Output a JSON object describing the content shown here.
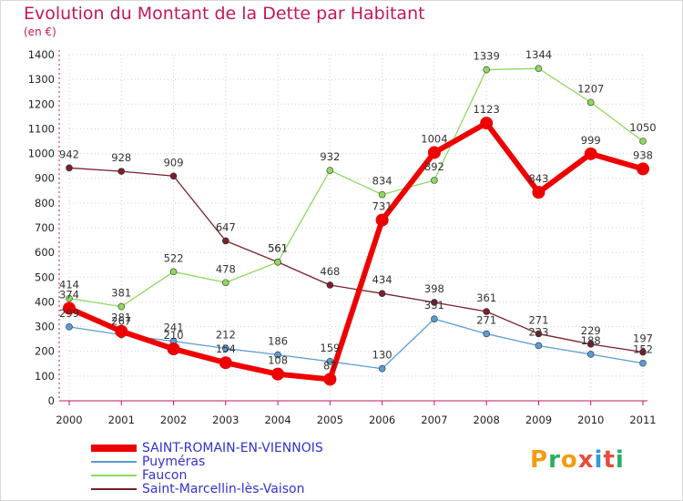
{
  "title": "Evolution du Montant de la Dette par Habitant",
  "unit": "(en €)",
  "logo": {
    "text": "Proxiti",
    "colors": [
      "#f39c12",
      "#27ae60",
      "#f39c12",
      "#e74c3c",
      "#3498db",
      "#e74c3c",
      "#27ae60"
    ]
  },
  "chart_data": {
    "type": "line",
    "x": [
      2000,
      2001,
      2002,
      2003,
      2004,
      2005,
      2006,
      2007,
      2008,
      2009,
      2010,
      2011
    ],
    "ylim": [
      0,
      1400
    ],
    "yticks": [
      0,
      100,
      200,
      300,
      400,
      500,
      600,
      700,
      800,
      900,
      1000,
      1100,
      1200,
      1300,
      1400
    ],
    "grid": true,
    "legend": "bottom-left",
    "series": [
      {
        "name": "Saint-Marcellin-lès-Vaison",
        "color": "#7b1f2a",
        "width": 1.3,
        "marker": 3.5,
        "values": [
          942,
          928,
          909,
          647,
          561,
          468,
          434,
          398,
          361,
          271,
          229,
          197
        ],
        "labels": [
          "942",
          "928",
          "909",
          "647",
          "561",
          "468",
          "434",
          "398",
          "361",
          "271",
          "229",
          "197"
        ]
      },
      {
        "name": "Faucon",
        "color": "#8fd860",
        "width": 1.3,
        "marker": 3.5,
        "values": [
          414,
          381,
          522,
          478,
          561,
          932,
          834,
          892,
          1339,
          1344,
          1207,
          1050
        ],
        "labels": [
          "414",
          "381",
          "522",
          "478",
          "561",
          "932",
          "834",
          "892",
          "1339",
          "1344",
          "1207",
          "1050"
        ]
      },
      {
        "name": "Puyméras",
        "color": "#5b9bd5",
        "width": 1.3,
        "marker": 3.5,
        "values": [
          299,
          267,
          241,
          212,
          186,
          159,
          130,
          331,
          271,
          223,
          188,
          152
        ],
        "labels": [
          "299",
          "267",
          "241",
          "212",
          "186",
          "159",
          "130",
          "331",
          "271",
          "223",
          "188",
          "152"
        ]
      },
      {
        "name": "SAINT-ROMAIN-EN-VIENNOIS",
        "color": "#ee0000",
        "width": 6,
        "marker": 7,
        "values": [
          374,
          281,
          210,
          154,
          108,
          87,
          731,
          1004,
          1123,
          843,
          999,
          938
        ],
        "labels": [
          "374",
          "281",
          "210",
          "154",
          "108",
          "87",
          "731",
          "1004",
          "1123",
          "843",
          "999",
          "938"
        ]
      }
    ],
    "legend_order": [
      "SAINT-ROMAIN-EN-VIENNOIS",
      "Puyméras",
      "Faucon",
      "Saint-Marcellin-lès-Vaison"
    ]
  }
}
